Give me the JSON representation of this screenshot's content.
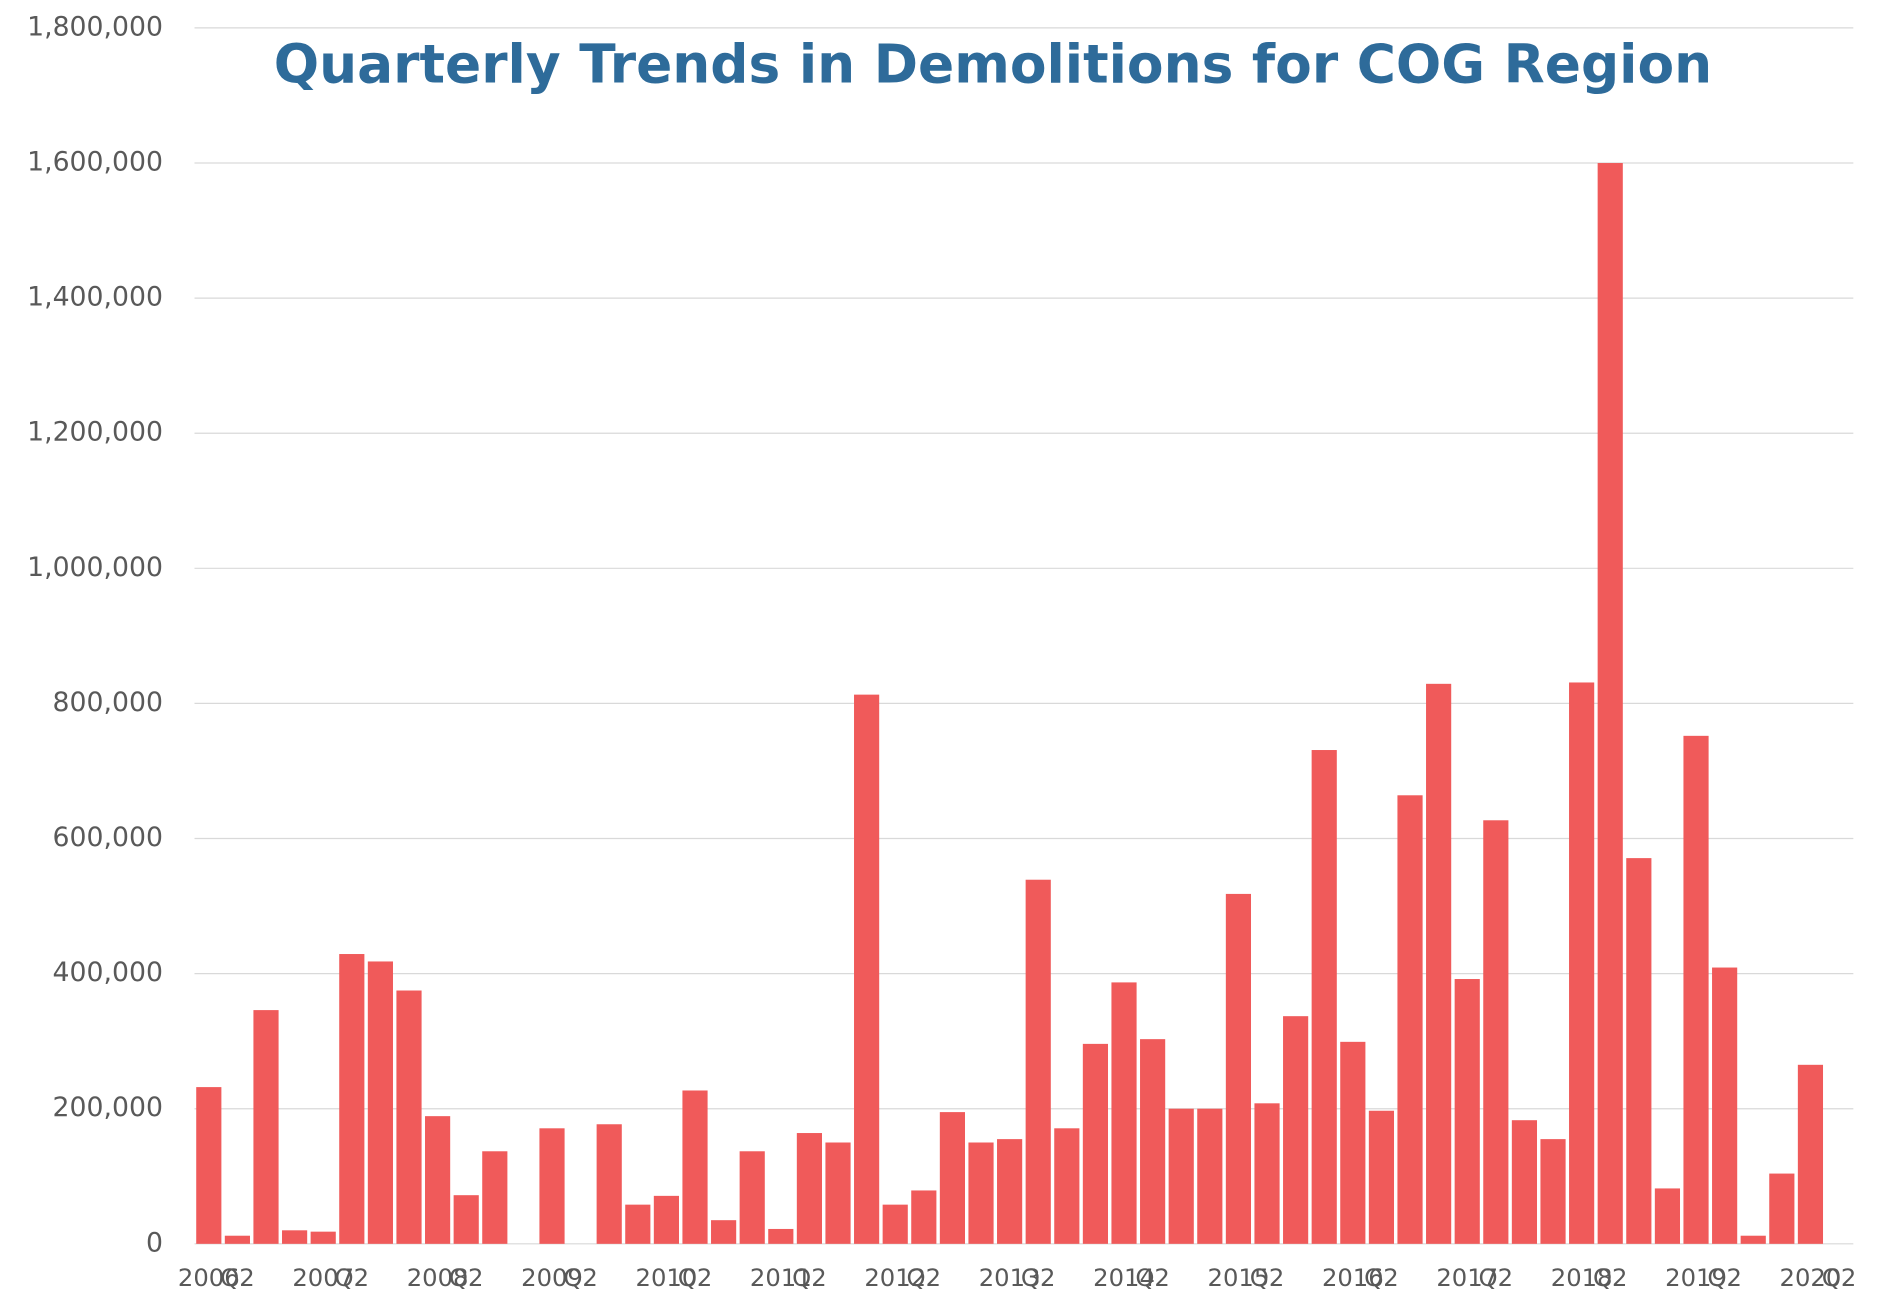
{
  "chart_data": {
    "type": "bar",
    "title": "Quarterly Trends in Demolitions for COG Region",
    "categories": [
      "2006",
      "Q2",
      null,
      null,
      "2007",
      "Q2",
      null,
      null,
      "2008",
      "Q2",
      null,
      null,
      "2009",
      "Q2",
      null,
      null,
      "2010",
      "Q2",
      null,
      null,
      "2011",
      "Q2",
      null,
      null,
      "2012",
      "Q2",
      null,
      null,
      "2013",
      "Q2",
      null,
      null,
      "2014",
      "Q2",
      null,
      null,
      "2015",
      "Q2",
      null,
      null,
      "2016",
      "Q2",
      null,
      null,
      "2017",
      "Q2",
      null,
      null,
      "2018",
      "Q2",
      null,
      null,
      "2019",
      "Q2",
      null,
      null,
      "2020",
      "Q2"
    ],
    "values": [
      232000,
      12000,
      346000,
      20000,
      18000,
      429000,
      418000,
      375000,
      189000,
      72000,
      137000,
      0,
      171000,
      0,
      177000,
      58000,
      71000,
      227000,
      35000,
      137000,
      22000,
      164000,
      150000,
      813000,
      58000,
      79000,
      195000,
      150000,
      155000,
      539000,
      171000,
      296000,
      387000,
      303000,
      200000,
      200000,
      518000,
      208000,
      337000,
      731000,
      299000,
      197000,
      664000,
      829000,
      392000,
      627000,
      183000,
      155000,
      831000,
      1600000,
      571000,
      82000,
      752000,
      409000,
      12000,
      104000,
      265000,
      null
    ],
    "color": "#f05a5a",
    "ylim": [
      0,
      1800000
    ],
    "yticks": [
      0,
      {
        "value": 200000,
        "label": "200,000"
      },
      {
        "value": 400000,
        "label": "400,000"
      },
      {
        "value": 600000,
        "label": "600,000"
      },
      {
        "value": 800000,
        "label": "800,000"
      },
      {
        "value": 1000000,
        "label": "1,000,000"
      },
      {
        "value": 1200000,
        "label": "1,200,000"
      },
      {
        "value": 1400000,
        "label": "1,400,000"
      },
      {
        "value": 1600000,
        "label": "1,600,000"
      },
      {
        "value": 1800000,
        "label": "1,800,000"
      }
    ],
    "grid": true
  }
}
